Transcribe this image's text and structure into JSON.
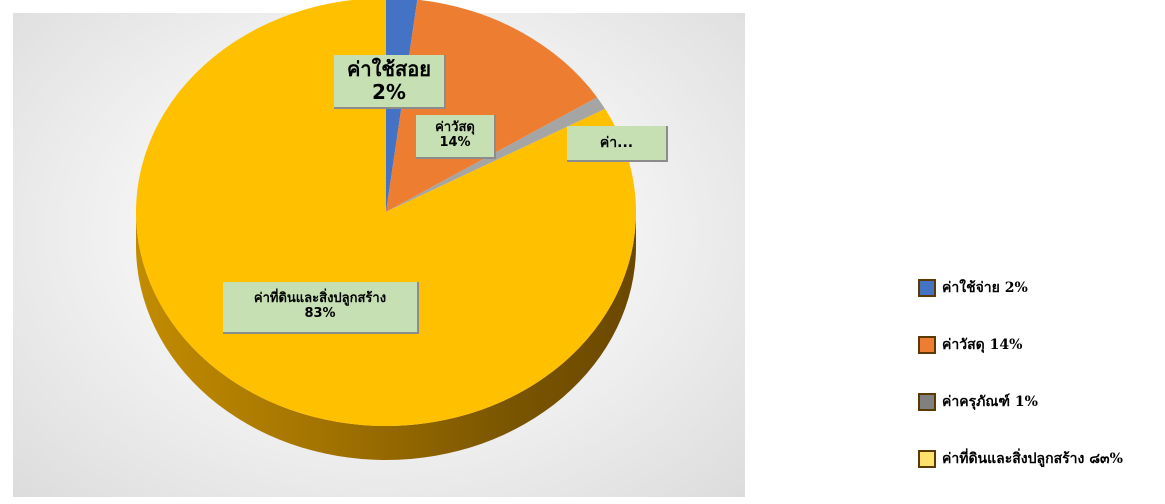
{
  "chart_data": {
    "type": "pie",
    "title": "",
    "slices": [
      {
        "category": "ค่าใช้จ่าย",
        "value": 2,
        "color": "#4472c4"
      },
      {
        "category": "ค่าวัสดุ",
        "value": 14,
        "color": "#ed7d31"
      },
      {
        "category": "ค่าครุภัณฑ์",
        "value": 1,
        "color": "#a5a5a5"
      },
      {
        "category": "ค่าที่ดินและสิ่งปลูกสร้าง",
        "value": 83,
        "color": "#ffc000"
      }
    ],
    "data_labels": [
      {
        "name": "ค่าใช้สอย",
        "percent": "2%"
      },
      {
        "name": "ค่าวัสดุ",
        "percent": "14%"
      },
      {
        "name": "ค่า...",
        "percent": ""
      },
      {
        "name": "ค่าที่ดินและสิ่งปลูกสร้าง",
        "percent": "83%"
      }
    ],
    "legend": {
      "position": "right",
      "items": [
        {
          "label": "ค่าใช้จ่าย 2%",
          "color": "#4472c4"
        },
        {
          "label": "ค่าวัสดุ 14%",
          "color": "#ed7d31"
        },
        {
          "label": "ค่าครุภัณฑ์ 1%",
          "color": "#808080"
        },
        {
          "label": "ค่าที่ดินและสิ่งปลูกสร้าง ๘๓%",
          "color": "#ffe26b"
        }
      ]
    },
    "style": "3d"
  }
}
